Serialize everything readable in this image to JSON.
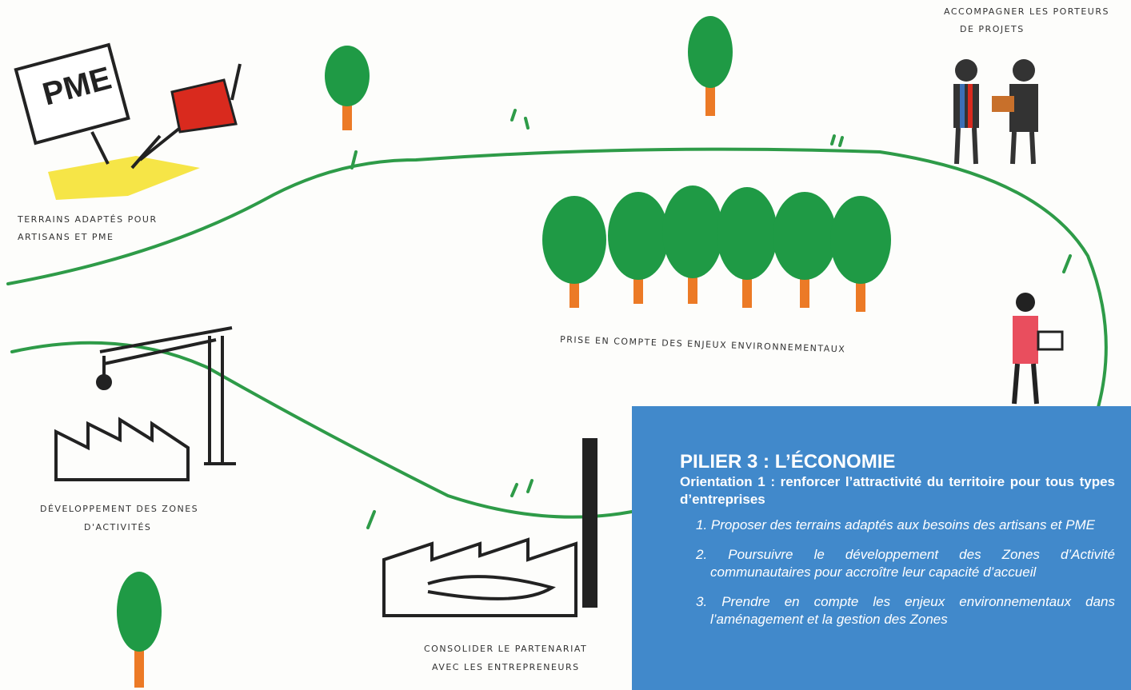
{
  "sketch": {
    "sign": "PME",
    "labels": [
      {
        "lines": [
          "ACCOMPAGNER LES PORTEURS",
          "DE PROJETS"
        ]
      },
      {
        "lines": [
          "TERRAINS ADAPTÉS POUR",
          "ARTISANS ET PME"
        ]
      },
      {
        "lines": [
          "PRISE EN COMPTE DES ENJEUX ENVIRONNEMENTAUX"
        ]
      },
      {
        "lines": [
          "DÉVELOPPEMENT DES ZONES",
          "D'ACTIVITÉS"
        ]
      },
      {
        "lines": [
          "CONSOLIDER LE PARTENARIAT",
          "AVEC LES ENTREPRENEURS"
        ]
      }
    ]
  },
  "panel": {
    "title": "PILIER 3 : L’ÉCONOMIE",
    "subtitle": "Orientation 1 : renforcer l’attractivité du territoire pour tous types d’entreprises",
    "items": [
      {
        "number": "1.",
        "text": "Proposer des terrains adaptés aux besoins des artisans et PME"
      },
      {
        "number": "2.",
        "text": "Poursuivre le développement des Zones d’Activité communautaires pour accroître leur capacité d’accueil"
      },
      {
        "number": "3.",
        "text": "Prendre en compte les enjeux environnementaux dans l’aménagement et la gestion des Zones"
      }
    ]
  }
}
